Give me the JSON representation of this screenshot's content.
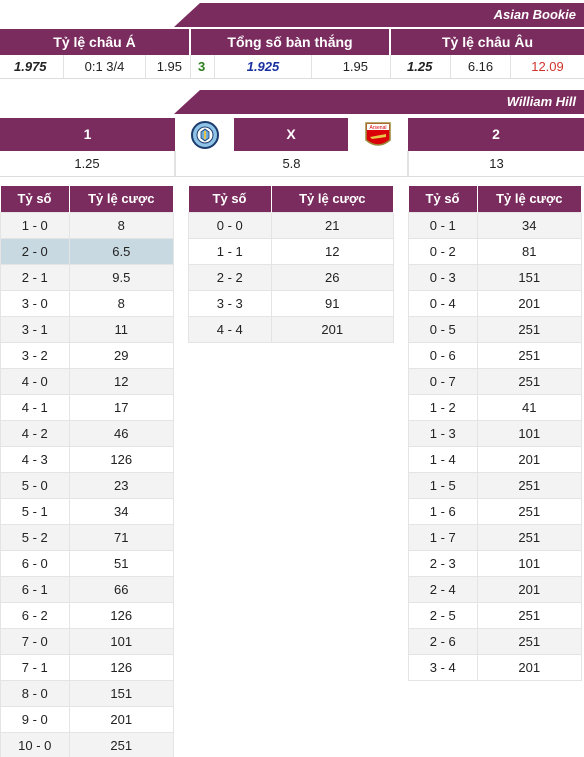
{
  "asian_bookie": {
    "title": "Asian Bookie",
    "headers": [
      "Tỷ lệ châu Á",
      "Tổng số bàn thắng",
      "Tỷ lệ châu Âu"
    ],
    "asia": {
      "home": "1.975",
      "handicap": "0:1 3/4",
      "away": "1.95"
    },
    "total": {
      "line": "3",
      "over": "1.925",
      "under": "1.95"
    },
    "europe": {
      "home": "1.25",
      "draw": "6.16",
      "away": "12.09"
    }
  },
  "william_hill": {
    "title": "William Hill",
    "headers": [
      "1",
      "X",
      "2"
    ],
    "values": [
      "1.25",
      "5.8",
      "13"
    ],
    "home_logo": "manchester-city-crest",
    "away_logo": "arsenal-crest",
    "away_logo_text": "Arsenal"
  },
  "score_headers": {
    "score": "Tỷ số",
    "odds": "Tỷ lệ cược"
  },
  "home_scores": [
    {
      "score": "1 - 0",
      "odds": "8"
    },
    {
      "score": "2 - 0",
      "odds": "6.5"
    },
    {
      "score": "2 - 1",
      "odds": "9.5"
    },
    {
      "score": "3 - 0",
      "odds": "8"
    },
    {
      "score": "3 - 1",
      "odds": "11"
    },
    {
      "score": "3 - 2",
      "odds": "29"
    },
    {
      "score": "4 - 0",
      "odds": "12"
    },
    {
      "score": "4 - 1",
      "odds": "17"
    },
    {
      "score": "4 - 2",
      "odds": "46"
    },
    {
      "score": "4 - 3",
      "odds": "126"
    },
    {
      "score": "5 - 0",
      "odds": "23"
    },
    {
      "score": "5 - 1",
      "odds": "34"
    },
    {
      "score": "5 - 2",
      "odds": "71"
    },
    {
      "score": "6 - 0",
      "odds": "51"
    },
    {
      "score": "6 - 1",
      "odds": "66"
    },
    {
      "score": "6 - 2",
      "odds": "126"
    },
    {
      "score": "7 - 0",
      "odds": "101"
    },
    {
      "score": "7 - 1",
      "odds": "126"
    },
    {
      "score": "8 - 0",
      "odds": "151"
    },
    {
      "score": "9 - 0",
      "odds": "201"
    },
    {
      "score": "10 - 0",
      "odds": "251"
    }
  ],
  "draw_scores": [
    {
      "score": "0 - 0",
      "odds": "21"
    },
    {
      "score": "1 - 1",
      "odds": "12"
    },
    {
      "score": "2 - 2",
      "odds": "26"
    },
    {
      "score": "3 - 3",
      "odds": "91"
    },
    {
      "score": "4 - 4",
      "odds": "201"
    }
  ],
  "away_scores": [
    {
      "score": "0 - 1",
      "odds": "34"
    },
    {
      "score": "0 - 2",
      "odds": "81"
    },
    {
      "score": "0 - 3",
      "odds": "151"
    },
    {
      "score": "0 - 4",
      "odds": "201"
    },
    {
      "score": "0 - 5",
      "odds": "251"
    },
    {
      "score": "0 - 6",
      "odds": "251"
    },
    {
      "score": "0 - 7",
      "odds": "251"
    },
    {
      "score": "1 - 2",
      "odds": "41"
    },
    {
      "score": "1 - 3",
      "odds": "101"
    },
    {
      "score": "1 - 4",
      "odds": "201"
    },
    {
      "score": "1 - 5",
      "odds": "251"
    },
    {
      "score": "1 - 6",
      "odds": "251"
    },
    {
      "score": "1 - 7",
      "odds": "251"
    },
    {
      "score": "2 - 3",
      "odds": "101"
    },
    {
      "score": "2 - 4",
      "odds": "201"
    },
    {
      "score": "2 - 5",
      "odds": "251"
    },
    {
      "score": "2 - 6",
      "odds": "251"
    },
    {
      "score": "3 - 4",
      "odds": "201"
    }
  ],
  "colors": {
    "header": "#7b2c5e",
    "highlight_row": "#c9d9e2",
    "away_odds_red": "#d0342c",
    "total_blue": "#1a2fa0",
    "line_green": "#2e7d1e"
  }
}
